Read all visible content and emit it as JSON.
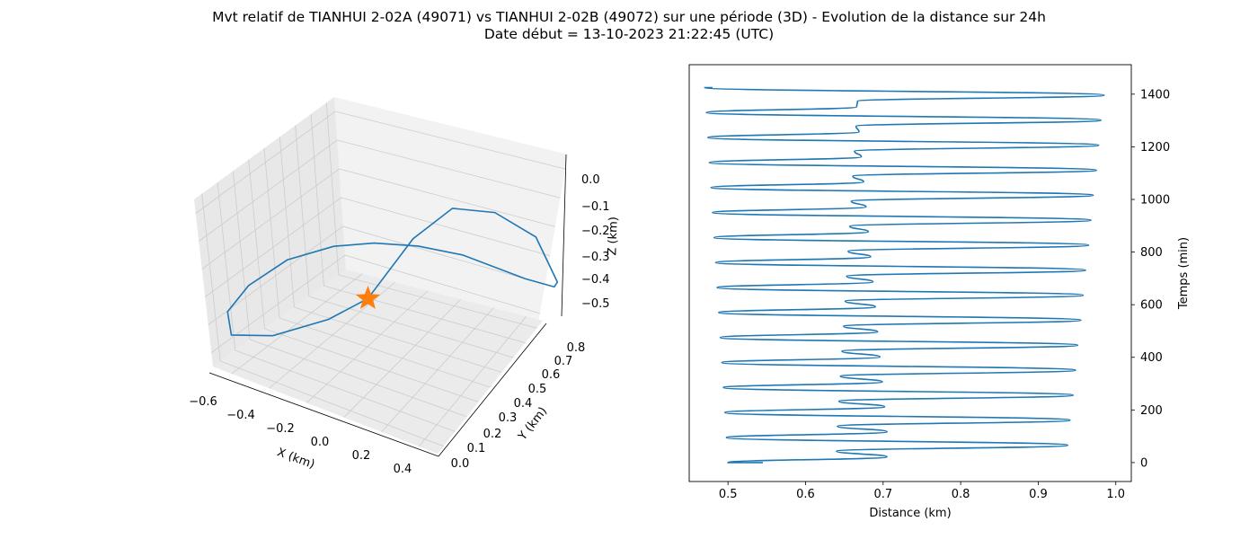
{
  "title_line1": "Mvt relatif de TIANHUI 2-02A (49071) vs TIANHUI 2-02B (49072) sur une période (3D) - Evolution de la distance sur 24h",
  "title_line2": "Date début = 13-10-2023 21:22:45 (UTC)",
  "colors": {
    "series": "#1f77b4",
    "marker": "#ff7f0e",
    "pane": "#f2f2f2",
    "grid": "#cccccc"
  },
  "chart_data": [
    {
      "type": "line3d",
      "xlabel": "X (km)",
      "ylabel": "Y (km)",
      "zlabel": "Z (km)",
      "xticks": [
        "−0.6",
        "−0.4",
        "−0.2",
        "0.0",
        "0.2",
        "0.4"
      ],
      "yticks": [
        "0.0",
        "0.1",
        "0.2",
        "0.3",
        "0.4",
        "0.5",
        "0.6",
        "0.7",
        "0.8"
      ],
      "zticks": [
        "0.0",
        "−0.1",
        "−0.2",
        "−0.3",
        "−0.4",
        "−0.5"
      ],
      "xlim": [
        -0.62,
        0.45
      ],
      "ylim": [
        0.0,
        0.85
      ],
      "zlim": [
        -0.55,
        0.05
      ],
      "grid": true,
      "marker": {
        "shape": "star",
        "x": -0.11,
        "y": 0.33,
        "z": -0.3
      },
      "series": [
        {
          "points": [
            [
              -0.11,
              0.33,
              -0.3
            ],
            [
              0.03,
              0.45,
              -0.1
            ],
            [
              0.15,
              0.55,
              0.0
            ],
            [
              0.3,
              0.62,
              0.0
            ],
            [
              0.43,
              0.7,
              -0.08
            ],
            [
              0.46,
              0.78,
              -0.26
            ],
            [
              0.42,
              0.81,
              -0.3
            ],
            [
              0.32,
              0.76,
              -0.28
            ],
            [
              0.1,
              0.66,
              -0.22
            ],
            [
              -0.05,
              0.58,
              -0.2
            ],
            [
              -0.2,
              0.5,
              -0.2
            ],
            [
              -0.35,
              0.44,
              -0.23
            ],
            [
              -0.5,
              0.34,
              -0.28
            ],
            [
              -0.6,
              0.22,
              -0.35
            ],
            [
              -0.63,
              0.12,
              -0.41
            ],
            [
              -0.57,
              0.06,
              -0.45
            ],
            [
              -0.4,
              0.1,
              -0.42
            ],
            [
              -0.22,
              0.22,
              -0.36
            ],
            [
              -0.11,
              0.33,
              -0.3
            ]
          ]
        }
      ]
    },
    {
      "type": "line",
      "xlabel": "Distance (km)",
      "ylabel": "Temps (min)",
      "xticks": [
        "0.5",
        "0.6",
        "0.7",
        "0.8",
        "0.9",
        "1.0"
      ],
      "yticks": [
        "0",
        "200",
        "400",
        "600",
        "800",
        "1000",
        "1200",
        "1400"
      ],
      "xlim": [
        0.45,
        1.02
      ],
      "ylim": [
        -72,
        1512
      ],
      "grid": false,
      "oscillation": {
        "period_min": 95,
        "turn_points": [
          [
            0.0,
            0.545
          ],
          [
            0.0,
            0.5
          ],
          [
            22.0,
            0.705
          ],
          [
            43.0,
            0.64
          ],
          [
            66.0,
            0.938
          ],
          [
            95.0,
            0.498
          ],
          [
            117.0,
            0.705
          ],
          [
            138.0,
            0.641
          ],
          [
            161.0,
            0.941
          ],
          [
            190.0,
            0.496
          ],
          [
            212.0,
            0.702
          ],
          [
            233.0,
            0.643
          ],
          [
            256.0,
            0.945
          ],
          [
            285.0,
            0.494
          ],
          [
            307.0,
            0.699
          ],
          [
            328.0,
            0.645
          ],
          [
            351.0,
            0.948
          ],
          [
            380.0,
            0.492
          ],
          [
            402.0,
            0.696
          ],
          [
            423.0,
            0.647
          ],
          [
            446.0,
            0.951
          ],
          [
            475.0,
            0.49
          ],
          [
            497.0,
            0.693
          ],
          [
            518.0,
            0.649
          ],
          [
            541.0,
            0.955
          ],
          [
            570.0,
            0.488
          ],
          [
            592.0,
            0.69
          ],
          [
            613.0,
            0.651
          ],
          [
            636.0,
            0.958
          ],
          [
            665.0,
            0.486
          ],
          [
            687.0,
            0.687
          ],
          [
            708.0,
            0.653
          ],
          [
            731.0,
            0.961
          ],
          [
            760.0,
            0.484
          ],
          [
            782.0,
            0.684
          ],
          [
            803.0,
            0.655
          ],
          [
            826.0,
            0.965
          ],
          [
            855.0,
            0.482
          ],
          [
            877.0,
            0.681
          ],
          [
            898.0,
            0.657
          ],
          [
            921.0,
            0.968
          ],
          [
            950.0,
            0.48
          ],
          [
            972.0,
            0.678
          ],
          [
            993.0,
            0.659
          ],
          [
            1016.0,
            0.971
          ],
          [
            1045.0,
            0.478
          ],
          [
            1067.0,
            0.675
          ],
          [
            1088.0,
            0.661
          ],
          [
            1111.0,
            0.975
          ],
          [
            1140.0,
            0.476
          ],
          [
            1162.0,
            0.672
          ],
          [
            1183.0,
            0.663
          ],
          [
            1206.0,
            0.978
          ],
          [
            1235.0,
            0.474
          ],
          [
            1257.0,
            0.669
          ],
          [
            1278.0,
            0.665
          ],
          [
            1301.0,
            0.981
          ],
          [
            1330.0,
            0.472
          ],
          [
            1352.0,
            0.666
          ],
          [
            1373.0,
            0.667
          ],
          [
            1396.0,
            0.985
          ],
          [
            1425.0,
            0.47
          ],
          [
            1425.0,
            0.48
          ]
        ]
      }
    }
  ]
}
